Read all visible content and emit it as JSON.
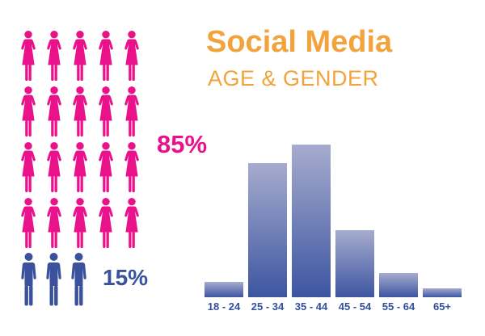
{
  "title": "Social Media",
  "subtitle": "AGE & GENDER",
  "colors": {
    "heading_orange": "#F2A33C",
    "female_pink": "#E9128B",
    "male_blue": "#3A529E",
    "axis_label_navy": "#32509D",
    "bar_gradient_top": "#A6ACCE",
    "bar_gradient_bottom": "#3D55A1",
    "background": "#FFFFFF"
  },
  "pictogram": {
    "female": {
      "label": "85%",
      "count": 20,
      "per_row": 5
    },
    "male": {
      "label": "15%",
      "count": 3
    }
  },
  "chart_data": {
    "type": "bar",
    "title": "Social Media",
    "subtitle": "AGE & GENDER",
    "categories": [
      "18 - 24",
      "25 - 34",
      "35 - 44",
      "45 - 54",
      "55 - 64",
      "65+"
    ],
    "values": [
      10,
      88,
      100,
      44,
      16,
      6
    ],
    "values_unit": "relative height, % of tallest bar (bars are unlabeled, no y-axis shown)",
    "xlabel": "",
    "ylabel": "",
    "ylim": [
      0,
      100
    ],
    "grid": false,
    "legend": false,
    "bar_gradient": [
      "#A6ACCE",
      "#3D55A1"
    ]
  }
}
